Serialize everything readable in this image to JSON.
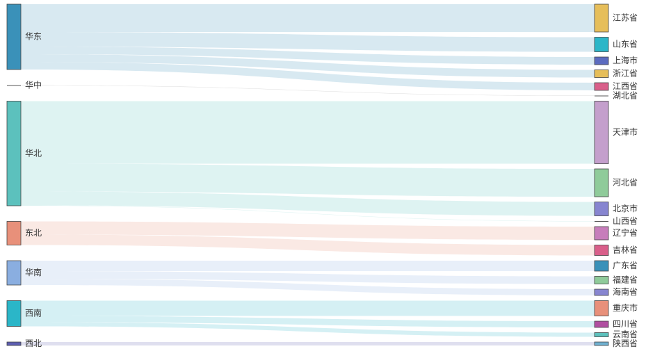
{
  "chart_data": {
    "type": "sankey",
    "nodes": [
      {
        "name": "华东",
        "color": "#3a91b9"
      },
      {
        "name": "华中",
        "color": "#555555"
      },
      {
        "name": "华北",
        "color": "#5cc1bd"
      },
      {
        "name": "东北",
        "color": "#e8907a"
      },
      {
        "name": "华南",
        "color": "#8aaee0"
      },
      {
        "name": "西南",
        "color": "#2bb6c8"
      },
      {
        "name": "西北",
        "color": "#5d5eb0"
      },
      {
        "name": "江苏省",
        "color": "#e6be5a"
      },
      {
        "name": "山东省",
        "color": "#2bb6c8"
      },
      {
        "name": "上海市",
        "color": "#5b6bbf"
      },
      {
        "name": "浙江省",
        "color": "#e6be5a"
      },
      {
        "name": "江西省",
        "color": "#d95f8a"
      },
      {
        "name": "湖北省",
        "color": "#555555"
      },
      {
        "name": "天津市",
        "color": "#c49fcc"
      },
      {
        "name": "河北省",
        "color": "#8fcb9a"
      },
      {
        "name": "北京市",
        "color": "#8785d0"
      },
      {
        "name": "山西省",
        "color": "#555555"
      },
      {
        "name": "辽宁省",
        "color": "#c77dbb"
      },
      {
        "name": "吉林省",
        "color": "#d95f8a"
      },
      {
        "name": "广东省",
        "color": "#3a91b9"
      },
      {
        "name": "福建省",
        "color": "#8fcb9a"
      },
      {
        "name": "海南省",
        "color": "#8785d0"
      },
      {
        "name": "重庆市",
        "color": "#e8907a"
      },
      {
        "name": "四川省",
        "color": "#b04fa0"
      },
      {
        "name": "云南省",
        "color": "#5cc1bd"
      },
      {
        "name": "陕西省",
        "color": "#6fb0d0"
      }
    ],
    "links": [
      {
        "source": 0,
        "target": 7,
        "value": 40
      },
      {
        "source": 0,
        "target": 8,
        "value": 21
      },
      {
        "source": 0,
        "target": 9,
        "value": 11
      },
      {
        "source": 0,
        "target": 10,
        "value": 11
      },
      {
        "source": 0,
        "target": 11,
        "value": 11
      },
      {
        "source": 1,
        "target": 12,
        "value": 0.5
      },
      {
        "source": 2,
        "target": 13,
        "value": 90
      },
      {
        "source": 2,
        "target": 14,
        "value": 40
      },
      {
        "source": 2,
        "target": 15,
        "value": 20
      },
      {
        "source": 2,
        "target": 16,
        "value": 0.5
      },
      {
        "source": 3,
        "target": 17,
        "value": 19
      },
      {
        "source": 3,
        "target": 18,
        "value": 15
      },
      {
        "source": 4,
        "target": 19,
        "value": 15
      },
      {
        "source": 4,
        "target": 20,
        "value": 11
      },
      {
        "source": 4,
        "target": 21,
        "value": 9
      },
      {
        "source": 5,
        "target": 22,
        "value": 22
      },
      {
        "source": 5,
        "target": 23,
        "value": 9
      },
      {
        "source": 5,
        "target": 24,
        "value": 6
      },
      {
        "source": 6,
        "target": 25,
        "value": 5
      }
    ]
  }
}
